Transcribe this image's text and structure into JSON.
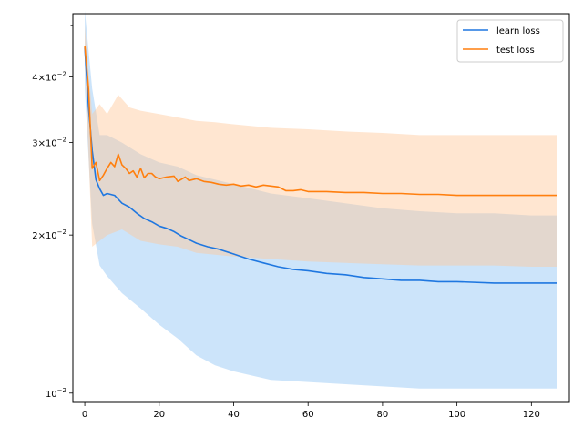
{
  "chart_data": {
    "type": "line",
    "title": "",
    "xlabel": "",
    "ylabel": "",
    "y_scale": "log",
    "xlim": [
      -3.2,
      130.2
    ],
    "ylim": [
      0.0096,
      0.0528
    ],
    "x_ticks": [
      0,
      20,
      40,
      60,
      80,
      100,
      120
    ],
    "x_tick_labels": [
      "0",
      "20",
      "40",
      "60",
      "80",
      "100",
      "120"
    ],
    "y_ticks": [
      0.01,
      0.02,
      0.03,
      0.04
    ],
    "y_tick_labels": [
      {
        "mant": "",
        "exp": "−2"
      },
      {
        "mant": "2×",
        "exp": "−2"
      },
      {
        "mant": "3×",
        "exp": "−2"
      },
      {
        "mant": "4×",
        "exp": "−2"
      }
    ],
    "y_minor_ticks": [
      0.05
    ],
    "grid": false,
    "legend_position": "top-right",
    "series": [
      {
        "name": "learn loss",
        "color": "#1f77e0",
        "band_color": "#8ec3f5",
        "points": [
          [
            0,
            0.0455
          ],
          [
            1,
            0.035
          ],
          [
            2,
            0.029
          ],
          [
            3,
            0.0255
          ],
          [
            4,
            0.0245
          ],
          [
            5,
            0.0238
          ],
          [
            6,
            0.024
          ],
          [
            8,
            0.0238
          ],
          [
            10,
            0.023
          ],
          [
            12,
            0.0226
          ],
          [
            14,
            0.022
          ],
          [
            16,
            0.0215
          ],
          [
            18,
            0.0212
          ],
          [
            20,
            0.0208
          ],
          [
            22,
            0.0206
          ],
          [
            24,
            0.0203
          ],
          [
            26,
            0.0199
          ],
          [
            28,
            0.0196
          ],
          [
            30,
            0.0193
          ],
          [
            33,
            0.019
          ],
          [
            36,
            0.0188
          ],
          [
            40,
            0.0184
          ],
          [
            44,
            0.018
          ],
          [
            48,
            0.0177
          ],
          [
            52,
            0.0174
          ],
          [
            56,
            0.0172
          ],
          [
            60,
            0.0171
          ],
          [
            65,
            0.0169
          ],
          [
            70,
            0.0168
          ],
          [
            75,
            0.0166
          ],
          [
            80,
            0.0165
          ],
          [
            85,
            0.0164
          ],
          [
            90,
            0.0164
          ],
          [
            95,
            0.0163
          ],
          [
            100,
            0.0163
          ],
          [
            110,
            0.0162
          ],
          [
            120,
            0.0162
          ],
          [
            127,
            0.0162
          ]
        ],
        "band_upper": [
          [
            0,
            0.0535
          ],
          [
            2,
            0.038
          ],
          [
            4,
            0.031
          ],
          [
            6,
            0.031
          ],
          [
            10,
            0.03
          ],
          [
            15,
            0.0285
          ],
          [
            20,
            0.0275
          ],
          [
            25,
            0.027
          ],
          [
            30,
            0.026
          ],
          [
            40,
            0.025
          ],
          [
            50,
            0.024
          ],
          [
            60,
            0.0235
          ],
          [
            70,
            0.023
          ],
          [
            80,
            0.0225
          ],
          [
            90,
            0.0222
          ],
          [
            100,
            0.022
          ],
          [
            110,
            0.022
          ],
          [
            120,
            0.0218
          ],
          [
            127,
            0.0218
          ]
        ],
        "band_lower": [
          [
            0,
            0.038
          ],
          [
            2,
            0.021
          ],
          [
            4,
            0.0175
          ],
          [
            6,
            0.0167
          ],
          [
            10,
            0.0155
          ],
          [
            15,
            0.0145
          ],
          [
            20,
            0.0135
          ],
          [
            25,
            0.0127
          ],
          [
            30,
            0.0118
          ],
          [
            35,
            0.0113
          ],
          [
            40,
            0.011
          ],
          [
            50,
            0.0106
          ],
          [
            60,
            0.0105
          ],
          [
            70,
            0.0104
          ],
          [
            80,
            0.0103
          ],
          [
            90,
            0.0102
          ],
          [
            100,
            0.0102
          ],
          [
            110,
            0.0102
          ],
          [
            120,
            0.0102
          ],
          [
            127,
            0.0102
          ]
        ]
      },
      {
        "name": "test loss",
        "color": "#ff7f0e",
        "band_color": "#ffc898",
        "points": [
          [
            0,
            0.0458
          ],
          [
            1,
            0.038
          ],
          [
            2,
            0.0268
          ],
          [
            3,
            0.0275
          ],
          [
            4,
            0.0254
          ],
          [
            5,
            0.026
          ],
          [
            6,
            0.0268
          ],
          [
            7,
            0.0275
          ],
          [
            8,
            0.027
          ],
          [
            9,
            0.0285
          ],
          [
            10,
            0.0272
          ],
          [
            11,
            0.0268
          ],
          [
            12,
            0.0262
          ],
          [
            13,
            0.0265
          ],
          [
            14,
            0.0258
          ],
          [
            15,
            0.0268
          ],
          [
            16,
            0.0257
          ],
          [
            17,
            0.0262
          ],
          [
            18,
            0.0262
          ],
          [
            19,
            0.0258
          ],
          [
            20,
            0.0256
          ],
          [
            22,
            0.0258
          ],
          [
            24,
            0.0259
          ],
          [
            25,
            0.0253
          ],
          [
            27,
            0.0258
          ],
          [
            28,
            0.0254
          ],
          [
            30,
            0.0256
          ],
          [
            32,
            0.0253
          ],
          [
            34,
            0.0252
          ],
          [
            36,
            0.025
          ],
          [
            38,
            0.0249
          ],
          [
            40,
            0.025
          ],
          [
            42,
            0.0248
          ],
          [
            44,
            0.0249
          ],
          [
            46,
            0.0247
          ],
          [
            48,
            0.0249
          ],
          [
            50,
            0.0248
          ],
          [
            52,
            0.0247
          ],
          [
            54,
            0.0243
          ],
          [
            56,
            0.0243
          ],
          [
            58,
            0.0244
          ],
          [
            60,
            0.0242
          ],
          [
            65,
            0.0242
          ],
          [
            70,
            0.0241
          ],
          [
            75,
            0.0241
          ],
          [
            80,
            0.024
          ],
          [
            85,
            0.024
          ],
          [
            90,
            0.0239
          ],
          [
            95,
            0.0239
          ],
          [
            100,
            0.0238
          ],
          [
            105,
            0.0238
          ],
          [
            110,
            0.0238
          ],
          [
            115,
            0.0238
          ],
          [
            120,
            0.0238
          ],
          [
            127,
            0.0238
          ]
        ],
        "band_upper": [
          [
            0,
            0.05
          ],
          [
            2,
            0.034
          ],
          [
            4,
            0.0355
          ],
          [
            6,
            0.034
          ],
          [
            9,
            0.037
          ],
          [
            12,
            0.035
          ],
          [
            15,
            0.0345
          ],
          [
            20,
            0.034
          ],
          [
            25,
            0.0335
          ],
          [
            30,
            0.033
          ],
          [
            35,
            0.0328
          ],
          [
            40,
            0.0325
          ],
          [
            50,
            0.032
          ],
          [
            60,
            0.0318
          ],
          [
            70,
            0.0315
          ],
          [
            80,
            0.0313
          ],
          [
            90,
            0.031
          ],
          [
            100,
            0.031
          ],
          [
            110,
            0.031
          ],
          [
            120,
            0.031
          ],
          [
            127,
            0.031
          ]
        ],
        "band_lower": [
          [
            0,
            0.043
          ],
          [
            2,
            0.019
          ],
          [
            4,
            0.0195
          ],
          [
            6,
            0.02
          ],
          [
            10,
            0.0205
          ],
          [
            15,
            0.0195
          ],
          [
            20,
            0.0192
          ],
          [
            25,
            0.019
          ],
          [
            30,
            0.0185
          ],
          [
            40,
            0.0182
          ],
          [
            50,
            0.018
          ],
          [
            60,
            0.0178
          ],
          [
            70,
            0.0177
          ],
          [
            80,
            0.0176
          ],
          [
            90,
            0.0175
          ],
          [
            100,
            0.0175
          ],
          [
            110,
            0.0175
          ],
          [
            120,
            0.0174
          ],
          [
            127,
            0.0174
          ]
        ]
      }
    ]
  }
}
